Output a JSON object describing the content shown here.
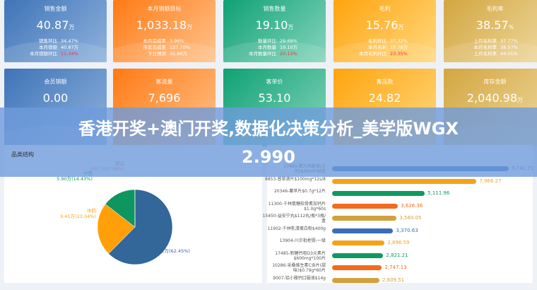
{
  "banner": {
    "line1": "香港开奖+澳门开奖,数据化决策分析_美学版WGX",
    "line2": "2.990"
  },
  "cards_row1": [
    {
      "title": "销售金额",
      "value": "40.87",
      "unit": "万",
      "rows": [
        [
          "销售环比",
          "34.47%"
        ],
        [
          "本月销额",
          "40.87万"
        ],
        [
          "本月销额环比",
          "11.34%"
        ]
      ],
      "color": "#4a7fc0"
    },
    {
      "title": "本月销额目标",
      "value": "1,033.18",
      "unit": "万",
      "rows": [
        [
          "本月完成率",
          "3.96%"
        ],
        [
          "序度完成差",
          "127.70%"
        ],
        [
          "下日预测",
          "31.86万"
        ]
      ],
      "color": "#ff7f1e"
    },
    {
      "title": "销售数量",
      "value": "19.10",
      "unit": "万",
      "rows": [
        [
          "数量环比",
          "29.68%"
        ],
        [
          "本月数量",
          "19.10万"
        ],
        [
          "本月数量环比",
          "20.13%"
        ]
      ],
      "color": "#12a77a"
    },
    {
      "title": "毛利",
      "value": "15.76",
      "unit": "万",
      "rows": [
        [
          "毛利环比",
          "37.32%"
        ],
        [
          "本月毛利",
          "15.76万"
        ],
        [
          "本月毛利环比",
          "23.35%"
        ]
      ],
      "color": "#ffaa1a"
    },
    {
      "title": "毛利率",
      "value": "38.57",
      "unit": "%",
      "rows": [
        [
          "上月毛利率",
          "37.77%"
        ],
        [
          "本月毛利率",
          "38.57%"
        ],
        [
          "上月毛利率",
          "44.01%"
        ]
      ],
      "color": "#d8ae4a"
    }
  ],
  "cards_row2": [
    {
      "title": "会员销额",
      "value": "0.00",
      "unit": ""
    },
    {
      "title": "客流量",
      "value": "7,696",
      "unit": ""
    },
    {
      "title": "客单价",
      "value": "53.10",
      "unit": ""
    },
    {
      "title": "客品数",
      "value": "24.82",
      "unit": ""
    },
    {
      "title": "库存金额",
      "value": "2,040.98",
      "unit": "万"
    }
  ],
  "pie_panel": {
    "title": "品类结构"
  },
  "chart_data": [
    {
      "type": "pie",
      "title": "品类结构",
      "slices": [
        {
          "name": "西药",
          "value": "25.52万",
          "percent": 62.45,
          "color": "#336699"
        },
        {
          "name": "中药",
          "value": "9.41万",
          "percent": 23.04,
          "color": "#ff9f0a"
        },
        {
          "name": "中西",
          "value": "5.90万",
          "percent": 14.43,
          "color": "#0e9560"
        },
        {
          "name": "赠品",
          "value": "335.70",
          "percent": 0.08,
          "color": "#f07e3a"
        }
      ]
    },
    {
      "type": "bar",
      "orientation": "horizontal",
      "categories": [
        "17484-擎方同脱液(方剂)$20ml*48支",
        "8853-普草滴片$100mg*12s/8",
        "20346-薯苹片$0.7g*12片",
        "11300-千林氨糖软骨素加钙片$1.0g*60s",
        "15450-益安宁丸$112丸/瓶*3瓶/盒",
        "11902-千林乳清蛋白粉$400g",
        "13904-川贝枇杷膏-一级",
        "17485-新糖钙咀D3元素片$600mg*100片",
        "10286-采桑维生素C含片(甜味)$0.79g*60片",
        "9007-铝小雅钙口服液$14g"
      ],
      "values": [
        9741.71,
        7966.27,
        5111.96,
        3626.36,
        3560.05,
        3370.63,
        2896.59,
        2821.21,
        2747.13,
        2609.51
      ],
      "value_labels": [
        "9,741.71",
        "7,966.27",
        "5,111.96",
        "3,626.36",
        "3,560.05",
        "3,370.63",
        "2,896.59",
        "2,821.21",
        "2,747.13",
        "2,609.51"
      ],
      "colors": [
        "#3a6db5",
        "#f5a21b",
        "#0f9960",
        "#f26b1d",
        "#d1a23c"
      ]
    }
  ]
}
